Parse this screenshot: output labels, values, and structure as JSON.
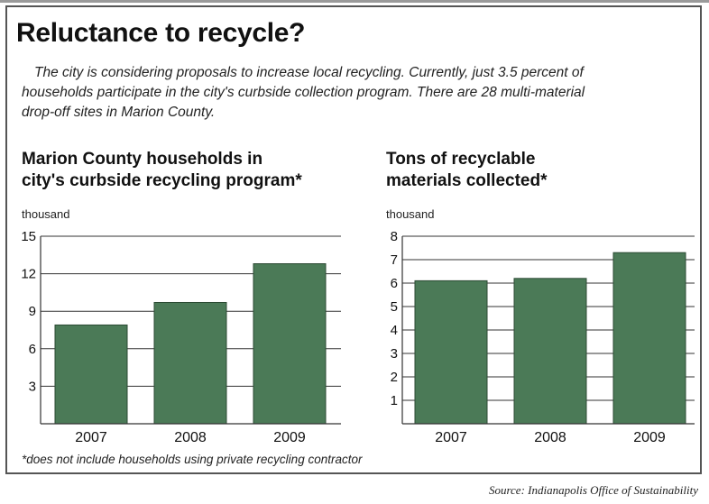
{
  "title": "Reluctance to recycle?",
  "intro_lines": [
    "The city is considering proposals to increase local recycling. Currently, just 3.5 percent of",
    "households participate in the city's curbside collection program. There are 28 multi-material",
    "drop-off sites in Marion County."
  ],
  "footnote": "*does not include households using private recycling contractor",
  "source": "Source: Indianapolis Office of Sustainability",
  "colors": {
    "bar": "#4b7a57",
    "bar_stroke": "#2b4a33",
    "grid": "#333333"
  },
  "chart_data": [
    {
      "type": "bar",
      "title_lines": [
        "Marion County households in",
        "city's curbside recycling program*"
      ],
      "unit_label": "thousand",
      "categories": [
        "2007",
        "2008",
        "2009"
      ],
      "values": [
        7.9,
        9.7,
        12.8
      ],
      "ylim": [
        0,
        15
      ],
      "yticks": [
        15,
        12,
        9,
        6,
        3
      ],
      "xlabel": "",
      "ylabel": "",
      "grid": true,
      "legend": "none"
    },
    {
      "type": "bar",
      "title_lines": [
        "Tons of recyclable",
        "materials collected*"
      ],
      "unit_label": "thousand",
      "categories": [
        "2007",
        "2008",
        "2009"
      ],
      "values": [
        6.1,
        6.2,
        7.3
      ],
      "ylim": [
        0,
        8
      ],
      "yticks": [
        8,
        7,
        6,
        5,
        4,
        3,
        2,
        1
      ],
      "xlabel": "",
      "ylabel": "",
      "grid": true,
      "legend": "none"
    }
  ]
}
